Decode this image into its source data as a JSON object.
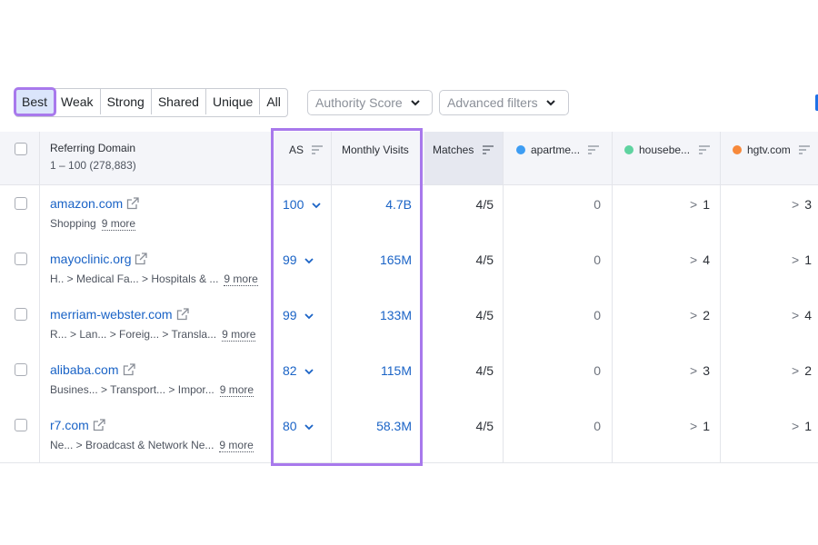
{
  "filters": {
    "tabs": [
      {
        "label": "Best",
        "active": true
      },
      {
        "label": "Weak",
        "active": false
      },
      {
        "label": "Strong",
        "active": false
      },
      {
        "label": "Shared",
        "active": false
      },
      {
        "label": "Unique",
        "active": false
      },
      {
        "label": "All",
        "active": false
      }
    ],
    "authority_score_label": "Authority Score",
    "advanced_filters_label": "Advanced filters"
  },
  "table": {
    "headers": {
      "referring_domain": "Referring Domain",
      "range": "1 – 100 (278,883)",
      "as": "AS",
      "monthly_visits": "Monthly Visits",
      "matches": "Matches",
      "competitors": [
        {
          "label": "apartme...",
          "color": "#3d9df3"
        },
        {
          "label": "housebe...",
          "color": "#5fd3a0"
        },
        {
          "label": "hgtv.com",
          "color": "#f7893b"
        }
      ]
    },
    "rows": [
      {
        "domain": "amazon.com",
        "cats": [
          "Shopping"
        ],
        "more": "9 more",
        "as": "100",
        "visits": "4.7B",
        "matches": "4/5",
        "c1": "0",
        "c2": "1",
        "c3": "3"
      },
      {
        "domain": "mayoclinic.org",
        "cats": [
          "H..",
          "Medical Fa...",
          "Hospitals & ..."
        ],
        "more": "9 more",
        "as": "99",
        "visits": "165M",
        "matches": "4/5",
        "c1": "0",
        "c2": "4",
        "c3": "1"
      },
      {
        "domain": "merriam-webster.com",
        "cats": [
          "R...",
          "Lan...",
          "Foreig...",
          "Transla..."
        ],
        "more": "9 more",
        "as": "99",
        "visits": "133M",
        "matches": "4/5",
        "c1": "0",
        "c2": "2",
        "c3": "4"
      },
      {
        "domain": "alibaba.com",
        "cats": [
          "Busines...",
          "Transport...",
          "Impor..."
        ],
        "more": "9 more",
        "as": "82",
        "visits": "115M",
        "matches": "4/5",
        "c1": "0",
        "c2": "3",
        "c3": "2"
      },
      {
        "domain": "r7.com",
        "cats": [
          "Ne...",
          "Broadcast & Network Ne..."
        ],
        "more": "9 more",
        "as": "80",
        "visits": "58.3M",
        "matches": "4/5",
        "c1": "0",
        "c2": "1",
        "c3": "1"
      }
    ]
  }
}
